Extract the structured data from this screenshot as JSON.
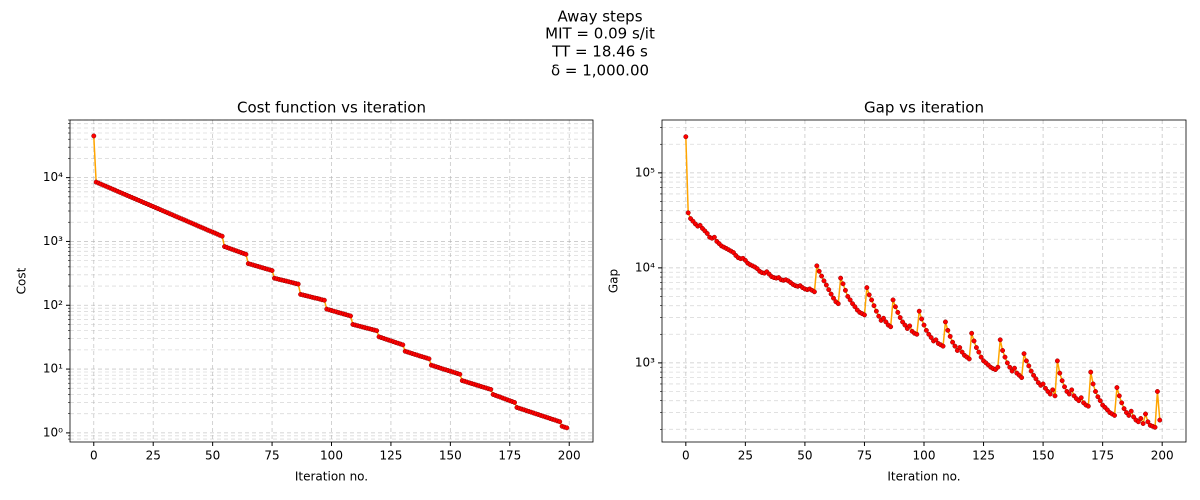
{
  "suptitle": [
    "Away steps",
    "MIT = 0.09 s/it",
    "TT = 18.46 s",
    "δ = 1,000.00"
  ],
  "chart_data": [
    {
      "type": "line",
      "title": "Cost function vs iteration",
      "xlabel": "Iteration no.",
      "ylabel": "Cost",
      "log_y": true,
      "grid": true,
      "minor_grid": true,
      "color": "#ffa500",
      "marker_color": "#ff0000",
      "xlim": [
        -10,
        210
      ],
      "xticks": [
        0,
        25,
        50,
        75,
        100,
        125,
        150,
        175,
        200
      ],
      "ylim": [
        0.72,
        80000
      ],
      "yticks": [
        {
          "value": 1,
          "label": "10⁰"
        },
        {
          "value": 10,
          "label": "10¹"
        },
        {
          "value": 100,
          "label": "10²"
        },
        {
          "value": 1000,
          "label": "10³"
        },
        {
          "value": 10000,
          "label": "10⁴"
        }
      ],
      "x": [
        0,
        1,
        2,
        3,
        4,
        5,
        6,
        7,
        8,
        9,
        10,
        11,
        12,
        13,
        14,
        15,
        16,
        17,
        18,
        19,
        20,
        21,
        22,
        23,
        24,
        25,
        26,
        27,
        28,
        29,
        30,
        31,
        32,
        33,
        34,
        35,
        36,
        37,
        38,
        39,
        40,
        41,
        42,
        43,
        44,
        45,
        46,
        47,
        48,
        49,
        50,
        51,
        52,
        53,
        54,
        55,
        56,
        57,
        58,
        59,
        60,
        61,
        62,
        63,
        64,
        65,
        66,
        67,
        68,
        69,
        70,
        71,
        72,
        73,
        74,
        75,
        76,
        77,
        78,
        79,
        80,
        81,
        82,
        83,
        84,
        85,
        86,
        87,
        88,
        89,
        90,
        91,
        92,
        93,
        94,
        95,
        96,
        97,
        98,
        99,
        100,
        101,
        102,
        103,
        104,
        105,
        106,
        107,
        108,
        109,
        110,
        111,
        112,
        113,
        114,
        115,
        116,
        117,
        118,
        119,
        120,
        121,
        122,
        123,
        124,
        125,
        126,
        127,
        128,
        129,
        130,
        131,
        132,
        133,
        134,
        135,
        136,
        137,
        138,
        139,
        140,
        141,
        142,
        143,
        144,
        145,
        146,
        147,
        148,
        149,
        150,
        151,
        152,
        153,
        154,
        155,
        156,
        157,
        158,
        159,
        160,
        161,
        162,
        163,
        164,
        165,
        166,
        167,
        168,
        169,
        170,
        171,
        172,
        173,
        174,
        175,
        176,
        177,
        178,
        179,
        180,
        181,
        182,
        183,
        184,
        185,
        186,
        187,
        188,
        189,
        190,
        191,
        192,
        193,
        194,
        195,
        196,
        197,
        198,
        199
      ],
      "values": [
        45000,
        8510,
        8200,
        7910,
        7620,
        7350,
        7080,
        6830,
        6580,
        6340,
        6110,
        5890,
        5680,
        5470,
        5270,
        5080,
        4900,
        4720,
        4550,
        4390,
        4230,
        4070,
        3930,
        3790,
        3650,
        3520,
        3390,
        3270,
        3150,
        3030,
        2920,
        2820,
        2710,
        2620,
        2520,
        2430,
        2340,
        2260,
        2180,
        2100,
        2020,
        1950,
        1880,
        1810,
        1740,
        1680,
        1620,
        1560,
        1500,
        1450,
        1400,
        1350,
        1300,
        1250,
        1210,
        830,
        805,
        781,
        757,
        734,
        712,
        690,
        670,
        649,
        630,
        450,
        439,
        428,
        417,
        407,
        397,
        387,
        377,
        368,
        359,
        350,
        265,
        260,
        254,
        249,
        244,
        239,
        234,
        229,
        224,
        219,
        215,
        148,
        145,
        142,
        139,
        136,
        133,
        130,
        128,
        125,
        122,
        120,
        87,
        84.9,
        82.8,
        80.8,
        78.8,
        76.9,
        75.1,
        73.2,
        71.5,
        69.7,
        68,
        50,
        48.9,
        47.8,
        46.8,
        45.7,
        44.7,
        43.7,
        42.8,
        41.8,
        40.9,
        40,
        32,
        31.1,
        30.2,
        29.3,
        28.5,
        27.7,
        26.9,
        26.1,
        25.4,
        24.7,
        24,
        19,
        18.5,
        18,
        17.5,
        17,
        16.6,
        16.1,
        15.7,
        15.3,
        14.9,
        14.5,
        11.5,
        11.2,
        10.9,
        10.6,
        10.3,
        10.0,
        9.76,
        9.5,
        9.25,
        9.0,
        8.76,
        8.52,
        8.3,
        6.6,
        6.43,
        6.26,
        6.09,
        5.93,
        5.78,
        5.62,
        5.48,
        5.33,
        5.19,
        5.06,
        4.92,
        4.8,
        4.0,
        3.87,
        3.75,
        3.64,
        3.52,
        3.41,
        3.3,
        3.2,
        3.1,
        3.0,
        2.5,
        2.43,
        2.36,
        2.3,
        2.23,
        2.17,
        2.11,
        2.05,
        1.99,
        1.94,
        1.88,
        1.83,
        1.78,
        1.73,
        1.68,
        1.63,
        1.59,
        1.54,
        1.5,
        1.27,
        1.23,
        1.2
      ]
    },
    {
      "type": "line",
      "title": "Gap vs iteration",
      "xlabel": "Iteration no.",
      "ylabel": "Gap",
      "log_y": true,
      "grid": true,
      "minor_grid": true,
      "color": "#ffa500",
      "marker_color": "#ff0000",
      "xlim": [
        -10,
        210
      ],
      "xticks": [
        0,
        25,
        50,
        75,
        100,
        125,
        150,
        175,
        200
      ],
      "ylim": [
        147,
        360000
      ],
      "yticks": [
        {
          "value": 1000,
          "label": "10³"
        },
        {
          "value": 10000,
          "label": "10⁴"
        },
        {
          "value": 100000,
          "label": "10⁵"
        }
      ],
      "x": [
        0,
        1,
        2,
        3,
        4,
        5,
        6,
        7,
        8,
        9,
        10,
        11,
        12,
        13,
        14,
        15,
        16,
        17,
        18,
        19,
        20,
        21,
        22,
        23,
        24,
        25,
        26,
        27,
        28,
        29,
        30,
        31,
        32,
        33,
        34,
        35,
        36,
        37,
        38,
        39,
        40,
        41,
        42,
        43,
        44,
        45,
        46,
        47,
        48,
        49,
        50,
        51,
        52,
        53,
        54,
        55,
        56,
        57,
        58,
        59,
        60,
        61,
        62,
        63,
        64,
        65,
        66,
        67,
        68,
        69,
        70,
        71,
        72,
        73,
        74,
        75,
        76,
        77,
        78,
        79,
        80,
        81,
        82,
        83,
        84,
        85,
        86,
        87,
        88,
        89,
        90,
        91,
        92,
        93,
        94,
        95,
        96,
        97,
        98,
        99,
        100,
        101,
        102,
        103,
        104,
        105,
        106,
        107,
        108,
        109,
        110,
        111,
        112,
        113,
        114,
        115,
        116,
        117,
        118,
        119,
        120,
        121,
        122,
        123,
        124,
        125,
        126,
        127,
        128,
        129,
        130,
        131,
        132,
        133,
        134,
        135,
        136,
        137,
        138,
        139,
        140,
        141,
        142,
        143,
        144,
        145,
        146,
        147,
        148,
        149,
        150,
        151,
        152,
        153,
        154,
        155,
        156,
        157,
        158,
        159,
        160,
        161,
        162,
        163,
        164,
        165,
        166,
        167,
        168,
        169,
        170,
        171,
        172,
        173,
        174,
        175,
        176,
        177,
        178,
        179,
        180,
        181,
        182,
        183,
        184,
        185,
        186,
        187,
        188,
        189,
        190,
        191,
        192,
        193,
        194,
        195,
        196,
        197,
        198,
        199
      ],
      "values": [
        240000,
        38000,
        33000,
        31000,
        29000,
        27500,
        28000,
        26000,
        24500,
        23000,
        21000,
        20500,
        21000,
        19000,
        18000,
        17000,
        16500,
        16000,
        15500,
        15000,
        14500,
        13500,
        12800,
        12500,
        12600,
        12000,
        11200,
        10800,
        10500,
        10200,
        9800,
        9200,
        8900,
        8800,
        9100,
        8600,
        8100,
        7900,
        7800,
        7900,
        7500,
        7400,
        7500,
        7300,
        7000,
        6700,
        6500,
        6400,
        6500,
        6200,
        6000,
        5900,
        6000,
        5800,
        5600,
        10500,
        9200,
        8200,
        7300,
        6600,
        5900,
        5300,
        4800,
        4400,
        4200,
        7800,
        6800,
        5800,
        5000,
        4600,
        4200,
        3900,
        3600,
        3400,
        3300,
        3200,
        6200,
        5200,
        4600,
        4000,
        3500,
        3100,
        2800,
        2950,
        2700,
        2500,
        2400,
        4600,
        3900,
        3400,
        3000,
        2700,
        2500,
        2300,
        2450,
        2150,
        2050,
        2000,
        3500,
        2900,
        2500,
        2200,
        2000,
        1850,
        1700,
        1750,
        1600,
        1550,
        1500,
        2700,
        2200,
        1900,
        1650,
        1500,
        1350,
        1450,
        1300,
        1200,
        1150,
        1100,
        2050,
        1700,
        1450,
        1300,
        1150,
        1050,
        1000,
        950,
        900,
        870,
        850,
        900,
        1750,
        1350,
        1150,
        1000,
        900,
        820,
        880,
        780,
        740,
        700,
        1250,
        1050,
        930,
        820,
        740,
        680,
        620,
        580,
        600,
        540,
        500,
        470,
        520,
        450,
        1050,
        780,
        650,
        560,
        500,
        470,
        520,
        450,
        420,
        400,
        430,
        380,
        360,
        350,
        800,
        600,
        500,
        440,
        400,
        360,
        340,
        320,
        300,
        290,
        280,
        550,
        450,
        380,
        330,
        300,
        280,
        310,
        270,
        250,
        240,
        260,
        230,
        290,
        240,
        220,
        215,
        210,
        500,
        250
      ]
    }
  ]
}
